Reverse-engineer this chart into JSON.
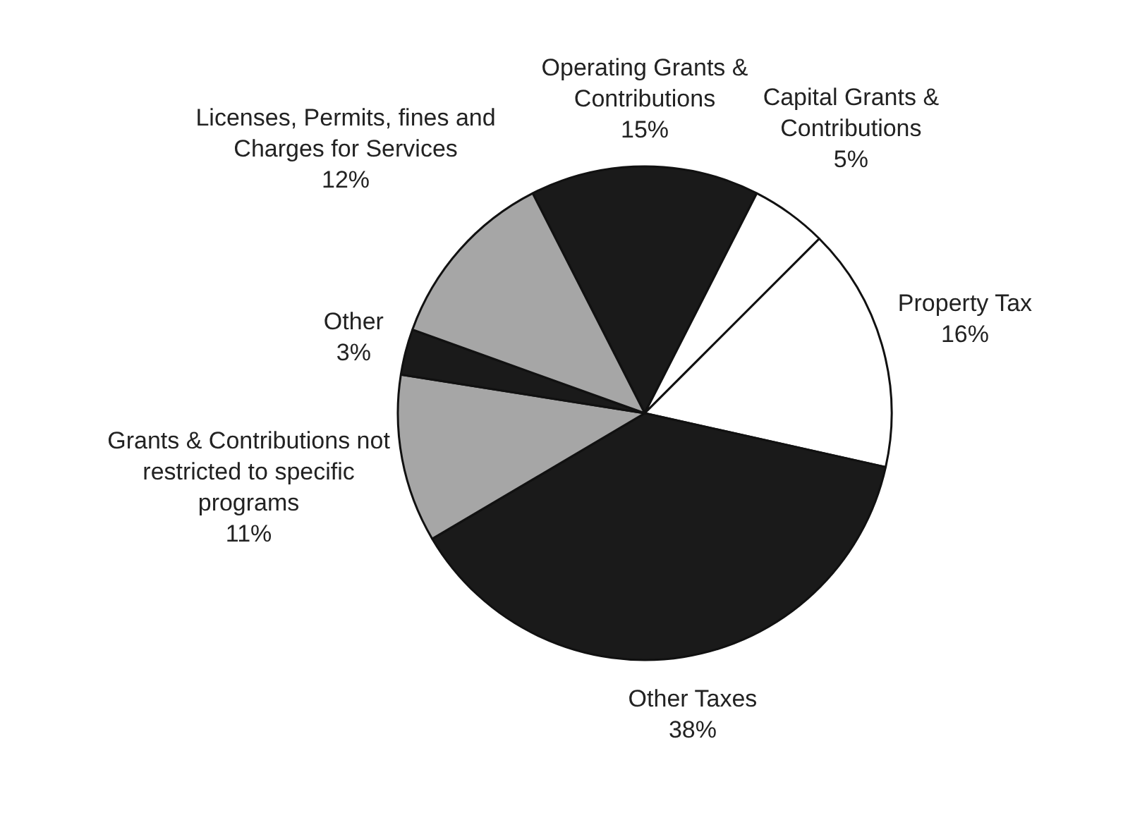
{
  "chart_data": {
    "type": "pie",
    "categories": [
      "Operating Grants & Contributions",
      "Capital Grants & Contributions",
      "Property Tax",
      "Other Taxes",
      "Grants & Contributions not restricted to specific programs",
      "Other",
      "Licenses, Permits, fines and Charges for Services"
    ],
    "values": [
      15,
      5,
      16,
      38,
      11,
      3,
      12
    ],
    "value_labels": [
      "15%",
      "5%",
      "16%",
      "38%",
      "11%",
      "3%",
      "12%"
    ],
    "colors": [
      "#1a1a1a",
      "#ffffff",
      "#ffffff",
      "#1a1a1a",
      "#a6a6a6",
      "#1a1a1a",
      "#a6a6a6"
    ],
    "legend": false
  }
}
